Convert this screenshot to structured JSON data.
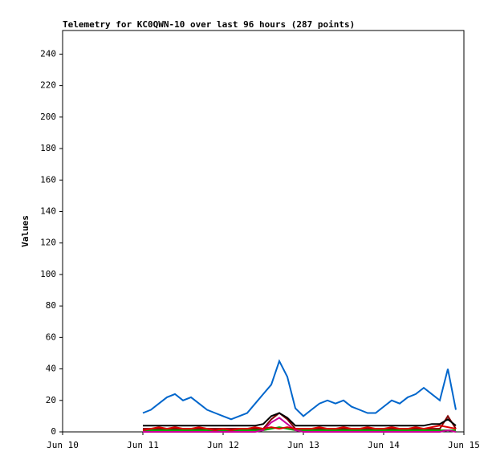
{
  "chart_data": {
    "type": "line",
    "title": "Telemetry for KC0QWN-10 over last 96 hours (287 points)",
    "y_label": "Values",
    "x": [
      11.0,
      11.1,
      11.2,
      11.3,
      11.4,
      11.5,
      11.6,
      11.7,
      11.8,
      11.9,
      12.0,
      12.1,
      12.2,
      12.3,
      12.4,
      12.5,
      12.6,
      12.7,
      12.8,
      12.9,
      13.0,
      13.1,
      13.2,
      13.3,
      13.4,
      13.5,
      13.6,
      13.7,
      13.8,
      13.9,
      14.0,
      14.1,
      14.2,
      14.3,
      14.4,
      14.5,
      14.6,
      14.7,
      14.8,
      14.9
    ],
    "xlim": [
      10,
      15
    ],
    "xticks": [
      {
        "value": 10,
        "label": "Jun 10"
      },
      {
        "value": 11,
        "label": "Jun 11"
      },
      {
        "value": 12,
        "label": "Jun 12"
      },
      {
        "value": 13,
        "label": "Jun 13"
      },
      {
        "value": 14,
        "label": "Jun 14"
      },
      {
        "value": 15,
        "label": "Jun 15"
      }
    ],
    "ylim": [
      0,
      255
    ],
    "yticks": [
      0,
      20,
      40,
      60,
      80,
      100,
      120,
      140,
      160,
      180,
      200,
      220,
      240
    ],
    "grid": false,
    "series": [
      {
        "color": "#800000",
        "values": [
          2,
          2,
          2,
          2,
          2,
          2,
          2,
          2,
          2,
          2,
          2,
          2,
          2,
          2,
          2,
          2,
          8,
          12,
          8,
          2,
          2,
          2,
          2,
          2,
          2,
          2,
          2,
          2,
          2,
          2,
          2,
          2,
          2,
          2,
          2,
          2,
          2,
          2,
          10,
          2
        ]
      },
      {
        "color": "#00aa00",
        "values": [
          1,
          1,
          1,
          1,
          1,
          1,
          1,
          1,
          1,
          1,
          1,
          1,
          1,
          1,
          1,
          1,
          2,
          3,
          2,
          1,
          1,
          1,
          1,
          1,
          1,
          1,
          1,
          1,
          1,
          1,
          1,
          1,
          1,
          1,
          1,
          1,
          1,
          1,
          1,
          1
        ]
      },
      {
        "color": "#cc0099",
        "values": [
          0,
          0,
          0,
          0,
          0,
          0,
          0,
          0,
          0,
          0,
          0,
          0,
          0,
          0,
          0,
          1,
          6,
          9,
          5,
          1,
          0,
          0,
          0,
          0,
          0,
          0,
          0,
          0,
          0,
          0,
          0,
          0,
          0,
          0,
          0,
          0,
          0,
          0,
          1,
          0
        ]
      },
      {
        "color": "#dd0000",
        "values": [
          1,
          2,
          3,
          2,
          3,
          2,
          2,
          3,
          2,
          1,
          2,
          1,
          2,
          2,
          3,
          2,
          3,
          2,
          3,
          2,
          2,
          2,
          3,
          2,
          2,
          3,
          2,
          2,
          3,
          2,
          2,
          3,
          2,
          2,
          3,
          2,
          3,
          4,
          3,
          2
        ]
      },
      {
        "color": "#000000",
        "values": [
          4,
          4,
          4,
          4,
          4,
          4,
          4,
          4,
          4,
          4,
          4,
          4,
          4,
          4,
          4,
          5,
          10,
          12,
          9,
          4,
          4,
          4,
          4,
          4,
          4,
          4,
          4,
          4,
          4,
          4,
          4,
          4,
          4,
          4,
          4,
          4,
          5,
          5,
          8,
          4
        ]
      },
      {
        "color": "#0066cc",
        "values": [
          12,
          14,
          18,
          22,
          24,
          20,
          22,
          18,
          14,
          12,
          10,
          8,
          10,
          12,
          18,
          24,
          30,
          45,
          35,
          15,
          10,
          14,
          18,
          20,
          18,
          20,
          16,
          14,
          12,
          12,
          16,
          20,
          18,
          22,
          24,
          28,
          24,
          20,
          40,
          14
        ]
      }
    ]
  }
}
